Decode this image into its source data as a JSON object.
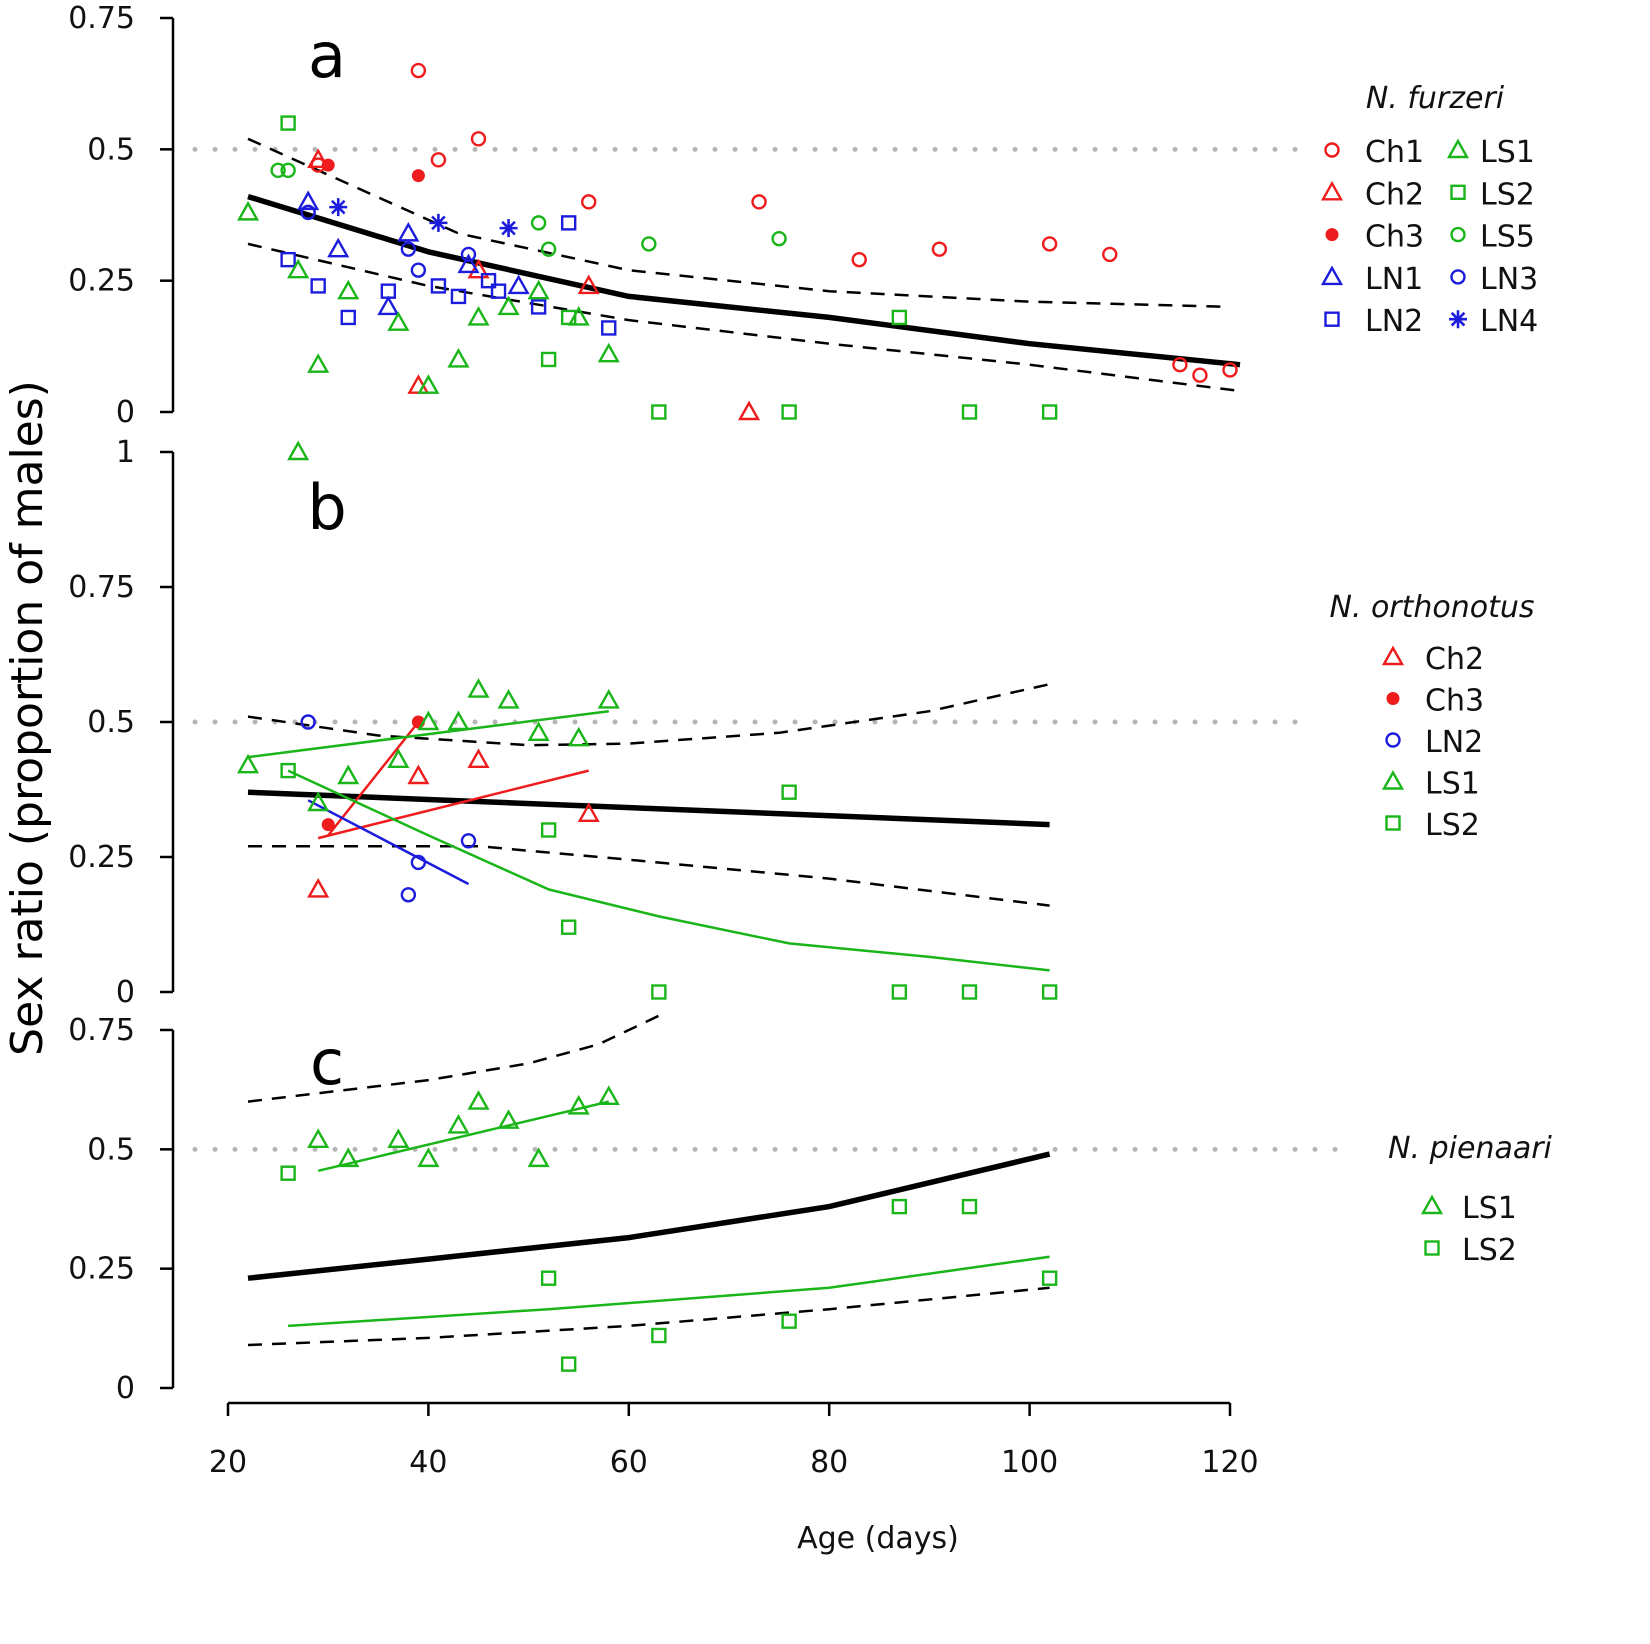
{
  "chart_data": {
    "type": "scatter",
    "xlabel": "Age (days)",
    "ylabel": "Sex ratio (proportion of males)",
    "xlim": [
      20,
      120
    ],
    "xticks": [
      20,
      40,
      60,
      80,
      100,
      120
    ],
    "reference_line": 0.5,
    "colors": {
      "red": "#ee1c1c",
      "green": "#19b519",
      "blue": "#1c1cdc",
      "black": "#000000",
      "reference": "#b5b5b5"
    },
    "panels": [
      {
        "label": "a",
        "species": "N. furzeri",
        "ylim": [
          0,
          0.75
        ],
        "yticks": [
          "0",
          "0.25",
          "0.5",
          "0.75"
        ],
        "series": [
          {
            "name": "Ch1",
            "marker": "circle",
            "color": "red",
            "x": [
              29,
              39,
              41,
              45,
              56,
              73,
              83,
              91,
              102,
              108,
              115,
              117,
              120
            ],
            "y": [
              0.47,
              0.65,
              0.48,
              0.52,
              0.4,
              0.4,
              0.29,
              0.31,
              0.32,
              0.3,
              0.09,
              0.07,
              0.08
            ]
          },
          {
            "name": "Ch2",
            "marker": "triangle",
            "color": "red",
            "x": [
              29,
              39,
              45,
              56,
              72
            ],
            "y": [
              0.48,
              0.05,
              0.27,
              0.24,
              0
            ]
          },
          {
            "name": "Ch3",
            "marker": "dot",
            "color": "red",
            "x": [
              30,
              39
            ],
            "y": [
              0.47,
              0.45
            ]
          },
          {
            "name": "LN1",
            "marker": "triangle",
            "color": "blue",
            "x": [
              28,
              31,
              36,
              38,
              44,
              49
            ],
            "y": [
              0.4,
              0.31,
              0.2,
              0.34,
              0.28,
              0.24
            ]
          },
          {
            "name": "LN2",
            "marker": "square",
            "color": "blue",
            "x": [
              26,
              29,
              32,
              36,
              41,
              43,
              46,
              47,
              51,
              54,
              58
            ],
            "y": [
              0.29,
              0.24,
              0.18,
              0.23,
              0.24,
              0.22,
              0.25,
              0.23,
              0.2,
              0.36,
              0.16
            ]
          },
          {
            "name": "LS1",
            "marker": "triangle",
            "color": "green",
            "x": [
              22,
              27,
              29,
              32,
              37,
              40,
              43,
              45,
              48,
              51,
              55,
              58
            ],
            "y": [
              0.38,
              0.27,
              0.09,
              0.23,
              0.17,
              0.05,
              0.1,
              0.18,
              0.2,
              0.23,
              0.18,
              0.11
            ]
          },
          {
            "name": "LS2",
            "marker": "square",
            "color": "green",
            "x": [
              26,
              52,
              54,
              63,
              76,
              87,
              94,
              102
            ],
            "y": [
              0.55,
              0.1,
              0.18,
              0,
              0,
              0.18,
              0,
              0
            ]
          },
          {
            "name": "LS5",
            "marker": "circle",
            "color": "green",
            "x": [
              25,
              26,
              51,
              52,
              62,
              75
            ],
            "y": [
              0.46,
              0.46,
              0.36,
              0.31,
              0.32,
              0.33
            ]
          },
          {
            "name": "LN3",
            "marker": "circle",
            "color": "blue",
            "x": [
              28,
              38,
              39,
              44
            ],
            "y": [
              0.38,
              0.31,
              0.27,
              0.3
            ]
          },
          {
            "name": "LN4",
            "marker": "asterisk",
            "color": "blue",
            "x": [
              31,
              41,
              48
            ],
            "y": [
              0.39,
              0.36,
              0.35
            ]
          }
        ],
        "fits": [
          {
            "style": "solid",
            "color": "black",
            "x": [
              22,
              40,
              60,
              80,
              100,
              121
            ],
            "y": [
              0.41,
              0.305,
              0.22,
              0.18,
              0.13,
              0.09
            ]
          },
          {
            "style": "dashed",
            "color": "black",
            "x": [
              22,
              43,
              60,
              80,
              100,
              120
            ],
            "y": [
              0.52,
              0.34,
              0.27,
              0.23,
              0.21,
              0.2
            ]
          },
          {
            "style": "dashed",
            "color": "black",
            "x": [
              22,
              40,
              60,
              80,
              100,
              121
            ],
            "y": [
              0.32,
              0.24,
              0.175,
              0.13,
              0.09,
              0.04
            ]
          }
        ],
        "legend": {
          "columns": [
            [
              "Ch1",
              "Ch2",
              "Ch3",
              "LN1",
              "LN2"
            ],
            [
              "LS1",
              "LS2",
              "LS5",
              "LN3",
              "LN4"
            ]
          ]
        }
      },
      {
        "label": "b",
        "species": "N. orthonotus",
        "ylim": [
          0,
          1
        ],
        "yticks": [
          "0",
          "0.25",
          "0.5",
          "0.75",
          "1"
        ],
        "series": [
          {
            "name": "Ch2",
            "marker": "triangle",
            "color": "red",
            "x": [
              29,
              39,
              45,
              56
            ],
            "y": [
              0.19,
              0.4,
              0.43,
              0.33
            ]
          },
          {
            "name": "Ch3",
            "marker": "dot",
            "color": "red",
            "x": [
              30,
              39
            ],
            "y": [
              0.31,
              0.5
            ]
          },
          {
            "name": "LN2",
            "marker": "circle",
            "color": "blue",
            "x": [
              28,
              38,
              39,
              44
            ],
            "y": [
              0.5,
              0.18,
              0.24,
              0.28
            ]
          },
          {
            "name": "LS1",
            "marker": "triangle",
            "color": "green",
            "x": [
              22,
              27,
              29,
              32,
              37,
              40,
              43,
              45,
              48,
              51,
              55,
              58
            ],
            "y": [
              0.42,
              1.0,
              0.35,
              0.4,
              0.43,
              0.5,
              0.5,
              0.56,
              0.54,
              0.48,
              0.47,
              0.54
            ]
          },
          {
            "name": "LS2",
            "marker": "square",
            "color": "green",
            "x": [
              26,
              52,
              54,
              63,
              76,
              87,
              94,
              102
            ],
            "y": [
              0.41,
              0.3,
              0.12,
              0,
              0.37,
              0,
              0,
              0
            ]
          }
        ],
        "fits": [
          {
            "style": "solid",
            "color": "black",
            "x": [
              22,
              102
            ],
            "y": [
              0.37,
              0.31
            ]
          },
          {
            "style": "dashed",
            "color": "black",
            "x": [
              22,
              35,
              50,
              60,
              75,
              90,
              102
            ],
            "y": [
              0.51,
              0.475,
              0.457,
              0.46,
              0.48,
              0.52,
              0.57
            ]
          },
          {
            "style": "dashed",
            "color": "black",
            "x": [
              22,
              45,
              60,
              80,
              102
            ],
            "y": [
              0.27,
              0.27,
              0.245,
              0.21,
              0.16
            ]
          },
          {
            "style": "thin",
            "color": "red",
            "x": [
              30,
              39
            ],
            "y": [
              0.29,
              0.5
            ]
          },
          {
            "style": "thin",
            "color": "red",
            "x": [
              29,
              56
            ],
            "y": [
              0.285,
              0.41
            ]
          },
          {
            "style": "thin",
            "color": "blue",
            "x": [
              28,
              44
            ],
            "y": [
              0.355,
              0.2
            ]
          },
          {
            "style": "thin",
            "color": "green",
            "x": [
              22,
              58
            ],
            "y": [
              0.435,
              0.52
            ]
          },
          {
            "style": "thin",
            "color": "green",
            "x": [
              26,
              40,
              52,
              63,
              76,
              90,
              102
            ],
            "y": [
              0.41,
              0.29,
              0.19,
              0.14,
              0.09,
              0.065,
              0.04
            ]
          }
        ],
        "legend": {
          "columns": [
            [
              "Ch2",
              "Ch3",
              "LN2",
              "LS1",
              "LS2"
            ]
          ]
        }
      },
      {
        "label": "c",
        "species": "N. pienaari",
        "ylim": [
          0,
          0.75
        ],
        "yticks": [
          "0",
          "0.25",
          "0.5",
          "0.75"
        ],
        "series": [
          {
            "name": "LS1",
            "marker": "triangle",
            "color": "green",
            "x": [
              29,
              32,
              37,
              40,
              43,
              45,
              48,
              51,
              55,
              58
            ],
            "y": [
              0.52,
              0.48,
              0.52,
              0.48,
              0.55,
              0.6,
              0.56,
              0.48,
              0.59,
              0.61
            ]
          },
          {
            "name": "LS2",
            "marker": "square",
            "color": "green",
            "x": [
              26,
              52,
              54,
              63,
              76,
              87,
              94,
              102
            ],
            "y": [
              0.45,
              0.23,
              0.05,
              0.11,
              0.14,
              0.38,
              0.38,
              0.23
            ]
          }
        ],
        "fits": [
          {
            "style": "solid",
            "color": "black",
            "x": [
              22,
              40,
              60,
              80,
              102
            ],
            "y": [
              0.23,
              0.27,
              0.315,
              0.38,
              0.49
            ]
          },
          {
            "style": "dashed",
            "color": "black",
            "x": [
              22,
              40,
              50,
              57,
              63
            ],
            "y": [
              0.6,
              0.645,
              0.68,
              0.72,
              0.78
            ]
          },
          {
            "style": "dashed",
            "color": "black",
            "x": [
              22,
              40,
              60,
              80,
              102
            ],
            "y": [
              0.09,
              0.105,
              0.13,
              0.165,
              0.21
            ]
          },
          {
            "style": "thin",
            "color": "green",
            "x": [
              29,
              58
            ],
            "y": [
              0.455,
              0.6
            ]
          },
          {
            "style": "thin",
            "color": "green",
            "x": [
              26,
              52,
              80,
              102
            ],
            "y": [
              0.13,
              0.165,
              0.21,
              0.275
            ]
          }
        ],
        "legend": {
          "columns": [
            [
              "LS1",
              "LS2"
            ]
          ]
        }
      }
    ]
  }
}
